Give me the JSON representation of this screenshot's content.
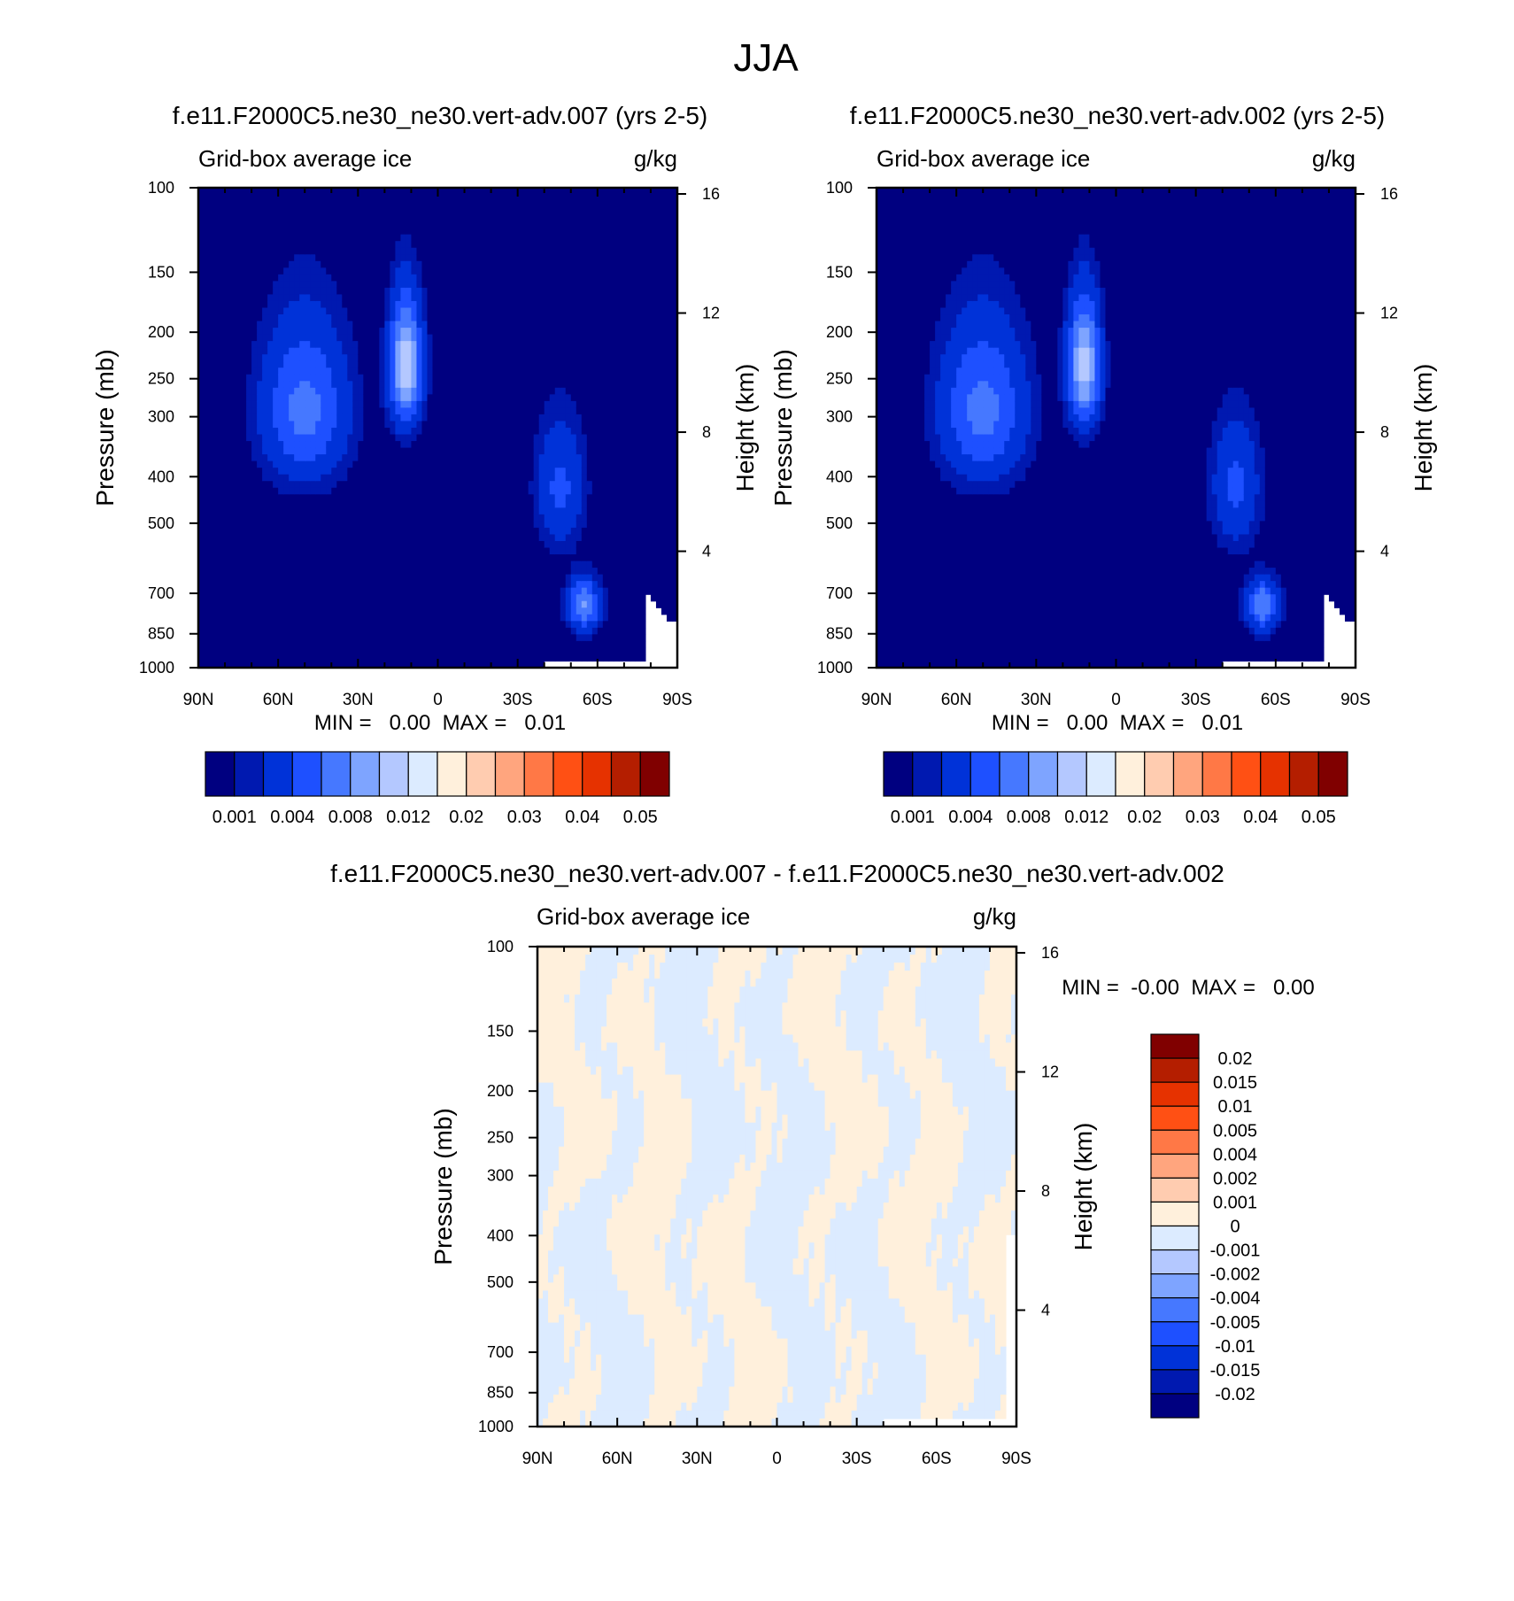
{
  "figure": {
    "title": "JJA"
  },
  "colors": {
    "abs_levels": [
      "#000080",
      "#0019b0",
      "#0032d8",
      "#1e50ff",
      "#4678ff",
      "#7ea4ff",
      "#b4c8ff",
      "#dcebff",
      "#fff0dc",
      "#ffccb0",
      "#ffa57e",
      "#ff7846",
      "#ff5014",
      "#e63200",
      "#b41e00",
      "#800000"
    ],
    "diff_levels": [
      "#000080",
      "#0019b0",
      "#0032d8",
      "#1e50ff",
      "#4678ff",
      "#7ea4ff",
      "#b4c8ff",
      "#dcebff",
      "#fff0dc",
      "#ffccb0",
      "#ffa57e",
      "#ff7846",
      "#ff5014",
      "#e63200",
      "#b41e00",
      "#800000"
    ]
  },
  "chart_data": [
    {
      "type": "heatmap",
      "title": "f.e11.F2000C5.ne30_ne30.vert-adv.007 (yrs 2-5)",
      "left_label": "Grid-box average ice",
      "right_label": "g/kg",
      "xlabel": "",
      "ylabel": "Pressure (mb)",
      "ylabel_right": "Height (km)",
      "x_ticks": [
        "90N",
        "60N",
        "30N",
        "0",
        "30S",
        "60S",
        "90S"
      ],
      "y_ticks": [
        "100",
        "150",
        "200",
        "250",
        "300",
        "400",
        "500",
        "700",
        "850",
        "1000"
      ],
      "y_right_ticks": [
        "16",
        "12",
        "8",
        "4"
      ],
      "stats": "MIN =   0.00  MAX =   0.01",
      "colorbar_labels": [
        "0.001",
        "0.004",
        "0.008",
        "0.012",
        "0.02",
        "0.03",
        "0.04",
        "0.05"
      ],
      "levels": [
        0.001,
        0.002,
        0.004,
        0.006,
        0.008,
        0.01,
        0.012,
        0.015,
        0.02,
        0.025,
        0.03,
        0.035,
        0.04,
        0.045,
        0.05
      ],
      "features": [
        {
          "lat": 50,
          "p": 290,
          "peak": 0.0068,
          "spread_lat": 16,
          "spread_p": 110
        },
        {
          "lat": 12,
          "p": 235,
          "peak": 0.0115,
          "spread_lat": 6,
          "spread_p": 70
        },
        {
          "lat": -46,
          "p": 420,
          "peak": 0.0045,
          "spread_lat": 9,
          "spread_p": 130
        },
        {
          "lat": -55,
          "p": 740,
          "peak": 0.0082,
          "spread_lat": 6,
          "spread_p": 90
        }
      ]
    },
    {
      "type": "heatmap",
      "title": "f.e11.F2000C5.ne30_ne30.vert-adv.002 (yrs 2-5)",
      "left_label": "Grid-box average ice",
      "right_label": "g/kg",
      "xlabel": "",
      "ylabel": "Pressure (mb)",
      "ylabel_right": "Height (km)",
      "x_ticks": [
        "90N",
        "60N",
        "30N",
        "0",
        "30S",
        "60S",
        "90S"
      ],
      "y_ticks": [
        "100",
        "150",
        "200",
        "250",
        "300",
        "400",
        "500",
        "700",
        "850",
        "1000"
      ],
      "y_right_ticks": [
        "16",
        "12",
        "8",
        "4"
      ],
      "stats": "MIN =   0.00  MAX =   0.01",
      "colorbar_labels": [
        "0.001",
        "0.004",
        "0.008",
        "0.012",
        "0.02",
        "0.03",
        "0.04",
        "0.05"
      ],
      "levels": [
        0.001,
        0.002,
        0.004,
        0.006,
        0.008,
        0.01,
        0.012,
        0.015,
        0.02,
        0.025,
        0.03,
        0.035,
        0.04,
        0.045,
        0.05
      ],
      "features": [
        {
          "lat": 50,
          "p": 290,
          "peak": 0.0068,
          "spread_lat": 16,
          "spread_p": 110
        },
        {
          "lat": 12,
          "p": 235,
          "peak": 0.0112,
          "spread_lat": 6,
          "spread_p": 70
        },
        {
          "lat": -45,
          "p": 420,
          "peak": 0.0045,
          "spread_lat": 9,
          "spread_p": 130
        },
        {
          "lat": -55,
          "p": 740,
          "peak": 0.008,
          "spread_lat": 6,
          "spread_p": 90
        }
      ]
    },
    {
      "type": "heatmap",
      "title": "f.e11.F2000C5.ne30_ne30.vert-adv.007 - f.e11.F2000C5.ne30_ne30.vert-adv.002",
      "left_label": "Grid-box average ice",
      "right_label": "g/kg",
      "xlabel": "",
      "ylabel": "Pressure (mb)",
      "ylabel_right": "Height (km)",
      "x_ticks": [
        "90N",
        "60N",
        "30N",
        "0",
        "30S",
        "60S",
        "90S"
      ],
      "y_ticks": [
        "100",
        "150",
        "200",
        "250",
        "300",
        "400",
        "500",
        "700",
        "850",
        "1000"
      ],
      "y_right_ticks": [
        "16",
        "12",
        "8",
        "4"
      ],
      "stats": "MIN =  -0.00  MAX =   0.00",
      "colorbar_labels": [
        "0.02",
        "0.015",
        "0.01",
        "0.005",
        "0.004",
        "0.002",
        "0.001",
        "0",
        "-0.001",
        "-0.002",
        "-0.004",
        "-0.005",
        "-0.01",
        "-0.015",
        "-0.02"
      ],
      "levels": [
        -0.02,
        -0.015,
        -0.01,
        -0.005,
        -0.004,
        -0.002,
        -0.001,
        0,
        0.001,
        0.002,
        0.004,
        0.005,
        0.01,
        0.015,
        0.02
      ]
    }
  ]
}
